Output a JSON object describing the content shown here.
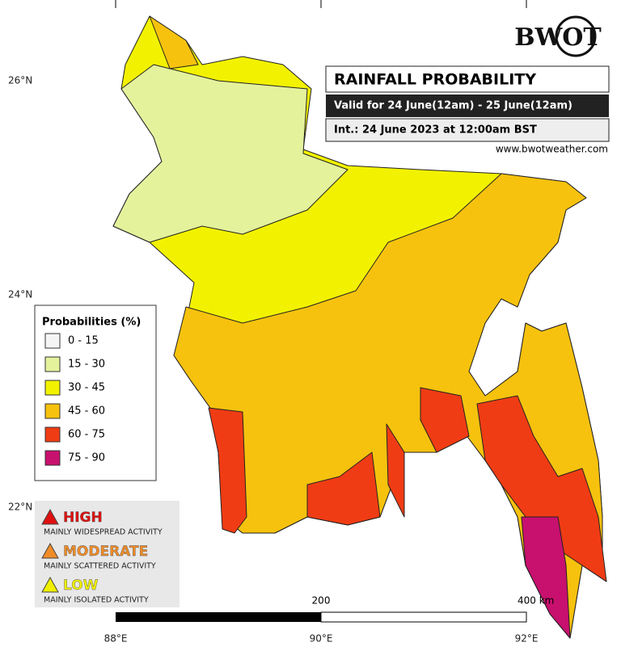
{
  "header": {
    "logo": "BWOT",
    "title": "RAINFALL PROBABILITY",
    "valid": "Valid for 24 June(12am) - 25 June(12am)",
    "issued": "Int.: 24 June 2023 at 12:00am BST",
    "website": "www.bwotweather.com"
  },
  "axes": {
    "lat_labels": [
      "26°N",
      "24°N",
      "22°N"
    ],
    "lon_labels": [
      "88°E",
      "90°E",
      "92°E"
    ]
  },
  "scale_bar": {
    "labels": [
      "200",
      "400 km"
    ]
  },
  "legend": {
    "title": "Probabilities (%)",
    "items": [
      {
        "label": "0 - 15",
        "color": "#f5f5f5"
      },
      {
        "label": "15 - 30",
        "color": "#e4f29c"
      },
      {
        "label": "30 - 45",
        "color": "#f2f200"
      },
      {
        "label": "45 - 60",
        "color": "#f7c20e"
      },
      {
        "label": "60 - 75",
        "color": "#f03c14"
      },
      {
        "label": "75 - 90",
        "color": "#c8106e"
      }
    ]
  },
  "alerts": [
    {
      "level": "HIGH",
      "description": "MAINLY WIDESPREAD ACTIVITY",
      "color": "#e01010"
    },
    {
      "level": "MODERATE",
      "description": "MAINLY SCATTERED ACTIVITY",
      "color": "#f08c28"
    },
    {
      "level": "LOW",
      "description": "MAINLY ISOLATED ACTIVITY",
      "color": "#f0f000"
    }
  ]
}
